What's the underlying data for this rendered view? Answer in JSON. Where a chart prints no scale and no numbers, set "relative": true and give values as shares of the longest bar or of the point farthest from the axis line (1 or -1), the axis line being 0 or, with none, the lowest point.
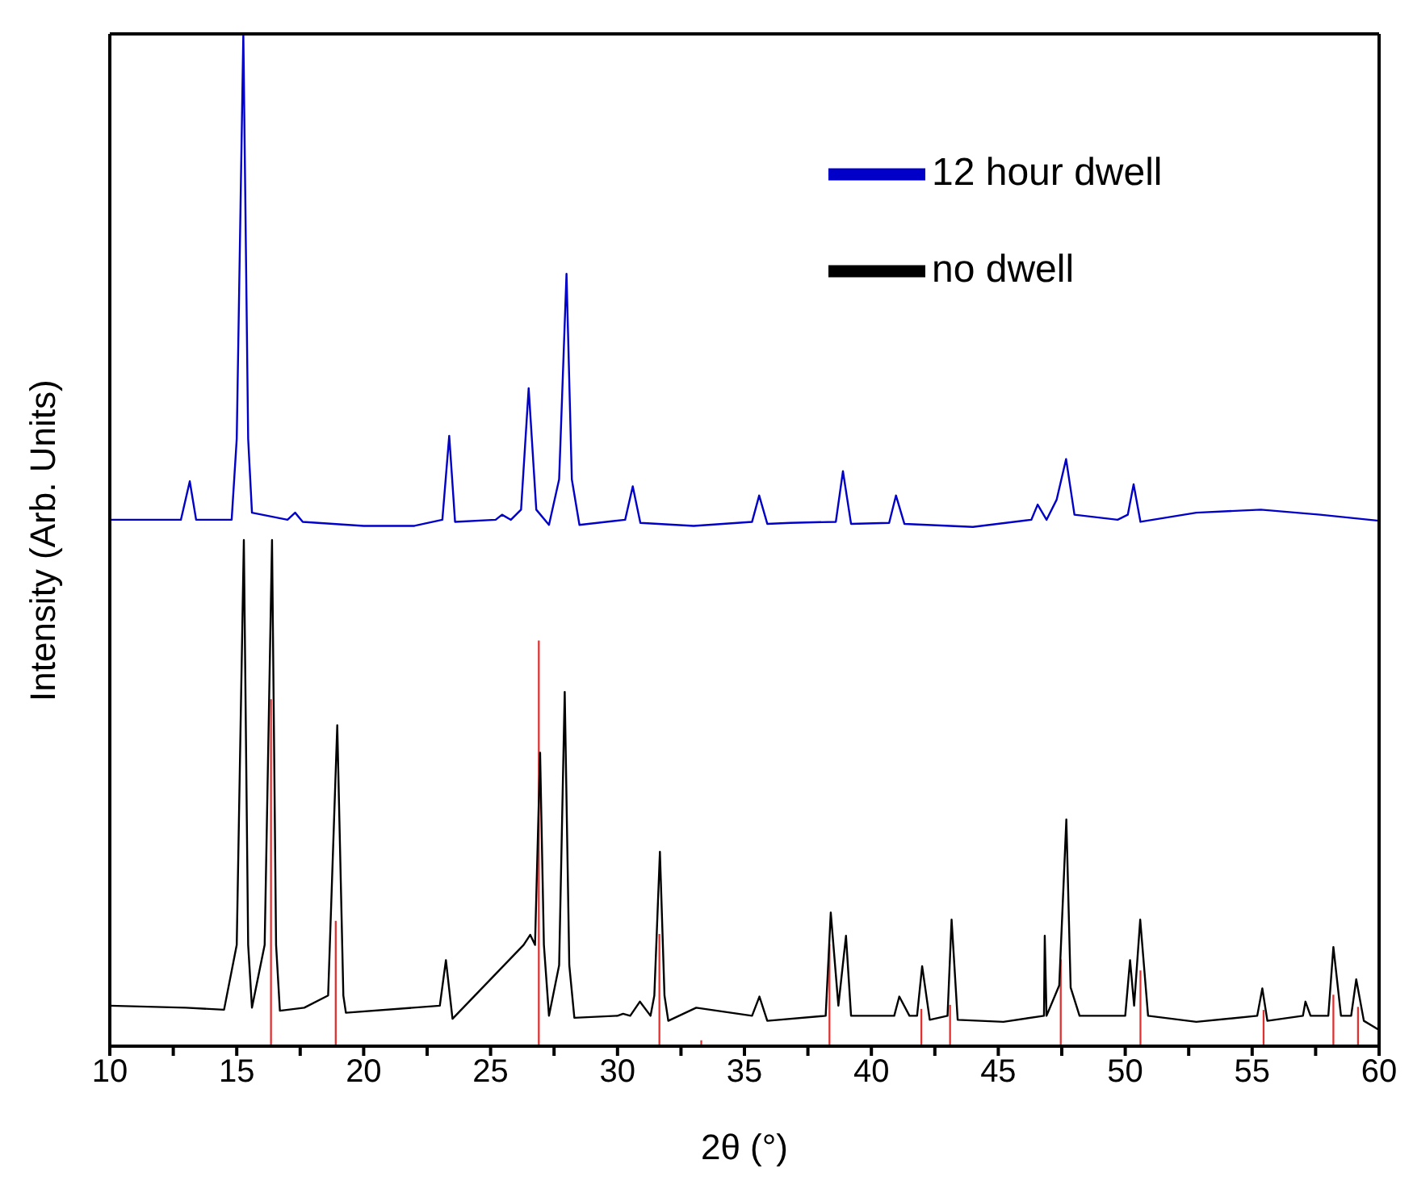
{
  "chart_data": {
    "type": "line",
    "relative": true,
    "xlabel": "2θ (°)",
    "ylabel": "Intensity (Arb. Units)",
    "xlim": [
      10,
      60
    ],
    "xticks": [
      10,
      {
        "value": 12.5,
        "label": null
      },
      15,
      {
        "value": 17.5,
        "label": null
      },
      20,
      {
        "value": 22.5,
        "label": null
      },
      25,
      {
        "value": 27.5,
        "label": null
      },
      30,
      {
        "value": 32.5,
        "label": null
      },
      35,
      {
        "value": 37.5,
        "label": null
      },
      40,
      {
        "value": 42.5,
        "label": null
      },
      45,
      {
        "value": 47.5,
        "label": null
      },
      50,
      {
        "value": 52.5,
        "label": null
      },
      55,
      {
        "value": 57.5,
        "label": null
      },
      60
    ],
    "legend": "top right",
    "marker": "none",
    "line_style": "solid",
    "series": [
      {
        "name": "12 hour dwell",
        "color": "#0000c8",
        "x": [
          10,
          12.8,
          13.15,
          13.4,
          14.8,
          15.0,
          15.26,
          15.45,
          15.6,
          17.0,
          17.3,
          17.6,
          20,
          22,
          23.1,
          23.37,
          23.6,
          25.2,
          25.45,
          25.8,
          26.2,
          26.5,
          26.8,
          27.3,
          27.7,
          27.99,
          28.2,
          28.5,
          30.3,
          30.6,
          30.9,
          33,
          35.3,
          35.58,
          35.9,
          36.8,
          38.6,
          38.88,
          39.2,
          40.7,
          40.97,
          41.3,
          44,
          46.3,
          46.55,
          46.9,
          47.3,
          47.67,
          48.0,
          49.7,
          50.1,
          50.33,
          50.6,
          52.8,
          55.34,
          57.68,
          60
        ],
        "values": [
          0.52,
          0.52,
          0.558,
          0.52,
          0.52,
          0.6,
          1.0,
          0.6,
          0.527,
          0.52,
          0.527,
          0.518,
          0.514,
          0.514,
          0.52,
          0.603,
          0.518,
          0.52,
          0.525,
          0.52,
          0.53,
          0.65,
          0.53,
          0.515,
          0.56,
          0.763,
          0.56,
          0.515,
          0.52,
          0.553,
          0.517,
          0.514,
          0.518,
          0.544,
          0.516,
          0.517,
          0.518,
          0.568,
          0.516,
          0.517,
          0.544,
          0.516,
          0.513,
          0.52,
          0.535,
          0.52,
          0.54,
          0.58,
          0.525,
          0.52,
          0.525,
          0.555,
          0.518,
          0.527,
          0.53,
          0.525,
          0.519
        ]
      },
      {
        "name": "no dwell",
        "color": "#000000",
        "x": [
          10,
          13,
          14.5,
          15.0,
          15.28,
          15.45,
          15.6,
          16.1,
          16.39,
          16.55,
          16.7,
          17.66,
          18.6,
          18.96,
          19.2,
          19.3,
          23.0,
          23.24,
          23.5,
          26.3,
          26.56,
          26.75,
          26.95,
          27.1,
          27.3,
          27.7,
          27.92,
          28.1,
          28.3,
          30.0,
          30.22,
          30.5,
          30.88,
          31.3,
          31.45,
          31.67,
          31.85,
          32,
          33.1,
          35.3,
          35.59,
          35.9,
          38.2,
          38.4,
          38.7,
          39.0,
          39.2,
          40.9,
          41.1,
          41.5,
          41.8,
          42.0,
          42.3,
          43.0,
          43.16,
          43.4,
          45.2,
          46.8,
          46.83,
          46.9,
          47.4,
          47.68,
          47.85,
          48.2,
          50.0,
          50.19,
          50.35,
          50.59,
          50.9,
          52.8,
          55.2,
          55.4,
          55.6,
          57.0,
          57.1,
          57.3,
          58.0,
          58.2,
          58.5,
          58.9,
          59.1,
          59.4,
          60
        ],
        "values": [
          0.04,
          0.038,
          0.036,
          0.1,
          0.5,
          0.1,
          0.038,
          0.1,
          0.5,
          0.1,
          0.035,
          0.038,
          0.05,
          0.317,
          0.05,
          0.033,
          0.04,
          0.085,
          0.027,
          0.1,
          0.11,
          0.1,
          0.29,
          0.1,
          0.03,
          0.08,
          0.35,
          0.08,
          0.028,
          0.03,
          0.032,
          0.03,
          0.044,
          0.03,
          0.05,
          0.192,
          0.05,
          0.025,
          0.038,
          0.03,
          0.049,
          0.025,
          0.03,
          0.132,
          0.04,
          0.109,
          0.03,
          0.03,
          0.049,
          0.03,
          0.03,
          0.079,
          0.026,
          0.03,
          0.125,
          0.026,
          0.024,
          0.03,
          0.109,
          0.03,
          0.06,
          0.224,
          0.058,
          0.03,
          0.03,
          0.085,
          0.04,
          0.125,
          0.03,
          0.024,
          0.03,
          0.057,
          0.025,
          0.03,
          0.044,
          0.03,
          0.03,
          0.098,
          0.03,
          0.03,
          0.066,
          0.025,
          0.016
        ]
      },
      {
        "type": "bar",
        "color": "#e03030",
        "x": [
          16.35,
          18.9,
          26.9,
          31.65,
          33.3,
          38.35,
          41.97,
          43.1,
          47.46,
          50.6,
          55.45,
          58.2,
          59.17
        ],
        "values": [
          0.342,
          0.123,
          0.4,
          0.11,
          0.005,
          0.1,
          0.036,
          0.04,
          0.085,
          0.074,
          0.035,
          0.05,
          0.038
        ]
      }
    ]
  }
}
